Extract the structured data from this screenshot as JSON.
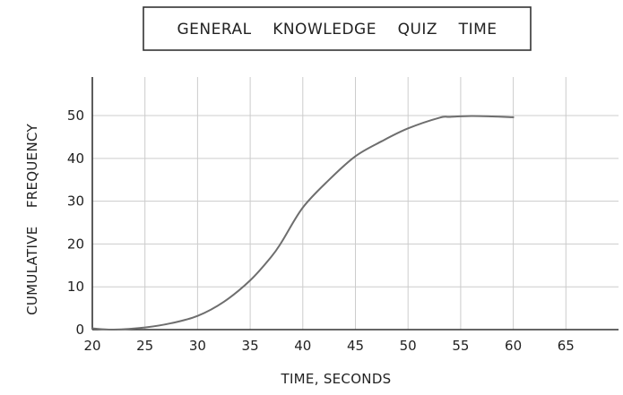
{
  "chart_data": {
    "type": "line",
    "title": "GENERAL    KNOWLEDGE    QUIZ    TIME",
    "xlabel": "TIME, SECONDS",
    "ylabel": "CUMULATIVE    FREQUENCY",
    "xlim": [
      20,
      70
    ],
    "ylim": [
      0,
      59
    ],
    "x_ticks": [
      20,
      25,
      30,
      35,
      40,
      45,
      50,
      55,
      60,
      65
    ],
    "y_ticks": [
      0,
      10,
      20,
      30,
      40,
      50
    ],
    "grid": true,
    "legend": "none",
    "colors": {
      "curve": "#6e6e6e",
      "grid": "#cccccc",
      "axis": "#333333",
      "title_border": "#333333"
    },
    "series": [
      {
        "x": [
          20,
          22,
          25,
          27.5,
          30,
          32.5,
          35,
          37,
          38,
          40,
          42.5,
          45,
          47.5,
          50,
          53,
          54,
          56,
          58,
          60
        ],
        "y": [
          0.3,
          0,
          0.5,
          1.5,
          3.2,
          6.5,
          11.5,
          17,
          20.5,
          28.5,
          35,
          40.5,
          44,
          47,
          49.5,
          49.7,
          49.9,
          49.8,
          49.6
        ]
      }
    ]
  }
}
